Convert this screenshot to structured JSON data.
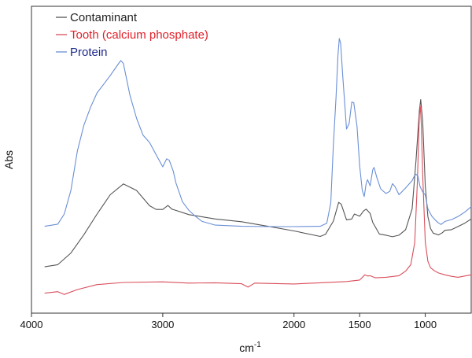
{
  "chart_data": {
    "type": "line",
    "title": "",
    "xlabel": "cm",
    "xlabel_superscript": "-1",
    "ylabel": "Abs",
    "x_reversed": true,
    "xlim": [
      4000,
      650
    ],
    "ylim": [
      0,
      1
    ],
    "x_ticks": [
      4000,
      3000,
      2000,
      1500,
      1000
    ],
    "x_tick_labels": [
      "4000",
      "3000",
      "2000",
      "1500",
      "1000"
    ],
    "grid": false,
    "legend_position": "top-left",
    "series": [
      {
        "name": "Contaminant",
        "color": "#555555",
        "points": [
          [
            3900,
            0.151
          ],
          [
            3800,
            0.158
          ],
          [
            3700,
            0.196
          ],
          [
            3600,
            0.256
          ],
          [
            3500,
            0.323
          ],
          [
            3400,
            0.386
          ],
          [
            3300,
            0.421
          ],
          [
            3200,
            0.4
          ],
          [
            3100,
            0.35
          ],
          [
            3050,
            0.338
          ],
          [
            3000,
            0.338
          ],
          [
            2960,
            0.351
          ],
          [
            2930,
            0.339
          ],
          [
            2900,
            0.335
          ],
          [
            2800,
            0.321
          ],
          [
            2600,
            0.307
          ],
          [
            2400,
            0.298
          ],
          [
            2200,
            0.283
          ],
          [
            2000,
            0.268
          ],
          [
            1800,
            0.25
          ],
          [
            1760,
            0.257
          ],
          [
            1700,
            0.3
          ],
          [
            1660,
            0.361
          ],
          [
            1640,
            0.355
          ],
          [
            1600,
            0.304
          ],
          [
            1560,
            0.307
          ],
          [
            1540,
            0.323
          ],
          [
            1500,
            0.316
          ],
          [
            1470,
            0.333
          ],
          [
            1450,
            0.339
          ],
          [
            1420,
            0.325
          ],
          [
            1400,
            0.295
          ],
          [
            1350,
            0.258
          ],
          [
            1300,
            0.254
          ],
          [
            1250,
            0.249
          ],
          [
            1200,
            0.254
          ],
          [
            1150,
            0.272
          ],
          [
            1100,
            0.34
          ],
          [
            1070,
            0.5
          ],
          [
            1045,
            0.66
          ],
          [
            1035,
            0.696
          ],
          [
            1020,
            0.626
          ],
          [
            1000,
            0.415
          ],
          [
            980,
            0.315
          ],
          [
            960,
            0.276
          ],
          [
            940,
            0.261
          ],
          [
            900,
            0.255
          ],
          [
            870,
            0.262
          ],
          [
            850,
            0.27
          ],
          [
            800,
            0.272
          ],
          [
            700,
            0.293
          ],
          [
            650,
            0.307
          ]
        ]
      },
      {
        "name": "Tooth (calcium phosphate)",
        "color": "#d94f5c",
        "points": [
          [
            3900,
            0.065
          ],
          [
            3800,
            0.07
          ],
          [
            3750,
            0.061
          ],
          [
            3650,
            0.077
          ],
          [
            3500,
            0.093
          ],
          [
            3300,
            0.1
          ],
          [
            3000,
            0.102
          ],
          [
            2800,
            0.098
          ],
          [
            2600,
            0.099
          ],
          [
            2400,
            0.096
          ],
          [
            2350,
            0.085
          ],
          [
            2300,
            0.098
          ],
          [
            2000,
            0.095
          ],
          [
            1800,
            0.099
          ],
          [
            1600,
            0.103
          ],
          [
            1500,
            0.108
          ],
          [
            1460,
            0.125
          ],
          [
            1440,
            0.121
          ],
          [
            1420,
            0.122
          ],
          [
            1380,
            0.115
          ],
          [
            1300,
            0.117
          ],
          [
            1200,
            0.122
          ],
          [
            1150,
            0.137
          ],
          [
            1110,
            0.158
          ],
          [
            1080,
            0.23
          ],
          [
            1060,
            0.43
          ],
          [
            1045,
            0.645
          ],
          [
            1038,
            0.675
          ],
          [
            1030,
            0.612
          ],
          [
            1020,
            0.452
          ],
          [
            1000,
            0.232
          ],
          [
            980,
            0.169
          ],
          [
            960,
            0.148
          ],
          [
            930,
            0.138
          ],
          [
            900,
            0.131
          ],
          [
            850,
            0.125
          ],
          [
            800,
            0.12
          ],
          [
            750,
            0.117
          ],
          [
            700,
            0.121
          ],
          [
            650,
            0.125
          ]
        ]
      },
      {
        "name": "Protein",
        "color": "#6a8fd6",
        "points": [
          [
            3900,
            0.283
          ],
          [
            3800,
            0.29
          ],
          [
            3750,
            0.323
          ],
          [
            3700,
            0.4
          ],
          [
            3650,
            0.529
          ],
          [
            3600,
            0.613
          ],
          [
            3550,
            0.671
          ],
          [
            3500,
            0.718
          ],
          [
            3450,
            0.746
          ],
          [
            3400,
            0.774
          ],
          [
            3350,
            0.805
          ],
          [
            3320,
            0.823
          ],
          [
            3300,
            0.814
          ],
          [
            3250,
            0.711
          ],
          [
            3200,
            0.636
          ],
          [
            3150,
            0.58
          ],
          [
            3100,
            0.556
          ],
          [
            3050,
            0.516
          ],
          [
            3000,
            0.477
          ],
          [
            2970,
            0.503
          ],
          [
            2950,
            0.498
          ],
          [
            2920,
            0.463
          ],
          [
            2900,
            0.425
          ],
          [
            2850,
            0.363
          ],
          [
            2800,
            0.335
          ],
          [
            2750,
            0.315
          ],
          [
            2700,
            0.299
          ],
          [
            2600,
            0.287
          ],
          [
            2400,
            0.283
          ],
          [
            2200,
            0.282
          ],
          [
            2000,
            0.282
          ],
          [
            1800,
            0.283
          ],
          [
            1750,
            0.293
          ],
          [
            1720,
            0.36
          ],
          [
            1700,
            0.55
          ],
          [
            1680,
            0.7
          ],
          [
            1665,
            0.84
          ],
          [
            1655,
            0.895
          ],
          [
            1645,
            0.88
          ],
          [
            1630,
            0.78
          ],
          [
            1600,
            0.6
          ],
          [
            1580,
            0.618
          ],
          [
            1560,
            0.688
          ],
          [
            1545,
            0.686
          ],
          [
            1520,
            0.61
          ],
          [
            1500,
            0.48
          ],
          [
            1480,
            0.4
          ],
          [
            1465,
            0.38
          ],
          [
            1450,
            0.423
          ],
          [
            1440,
            0.435
          ],
          [
            1420,
            0.415
          ],
          [
            1400,
            0.468
          ],
          [
            1390,
            0.475
          ],
          [
            1370,
            0.443
          ],
          [
            1340,
            0.405
          ],
          [
            1300,
            0.39
          ],
          [
            1270,
            0.397
          ],
          [
            1250,
            0.422
          ],
          [
            1230,
            0.412
          ],
          [
            1200,
            0.386
          ],
          [
            1150,
            0.408
          ],
          [
            1100,
            0.432
          ],
          [
            1085,
            0.445
          ],
          [
            1070,
            0.453
          ],
          [
            1055,
            0.445
          ],
          [
            1040,
            0.413
          ],
          [
            1020,
            0.395
          ],
          [
            1000,
            0.385
          ],
          [
            980,
            0.34
          ],
          [
            950,
            0.316
          ],
          [
            920,
            0.302
          ],
          [
            900,
            0.294
          ],
          [
            880,
            0.289
          ],
          [
            850,
            0.299
          ],
          [
            800,
            0.305
          ],
          [
            750,
            0.315
          ],
          [
            700,
            0.329
          ],
          [
            650,
            0.347
          ]
        ]
      }
    ]
  }
}
